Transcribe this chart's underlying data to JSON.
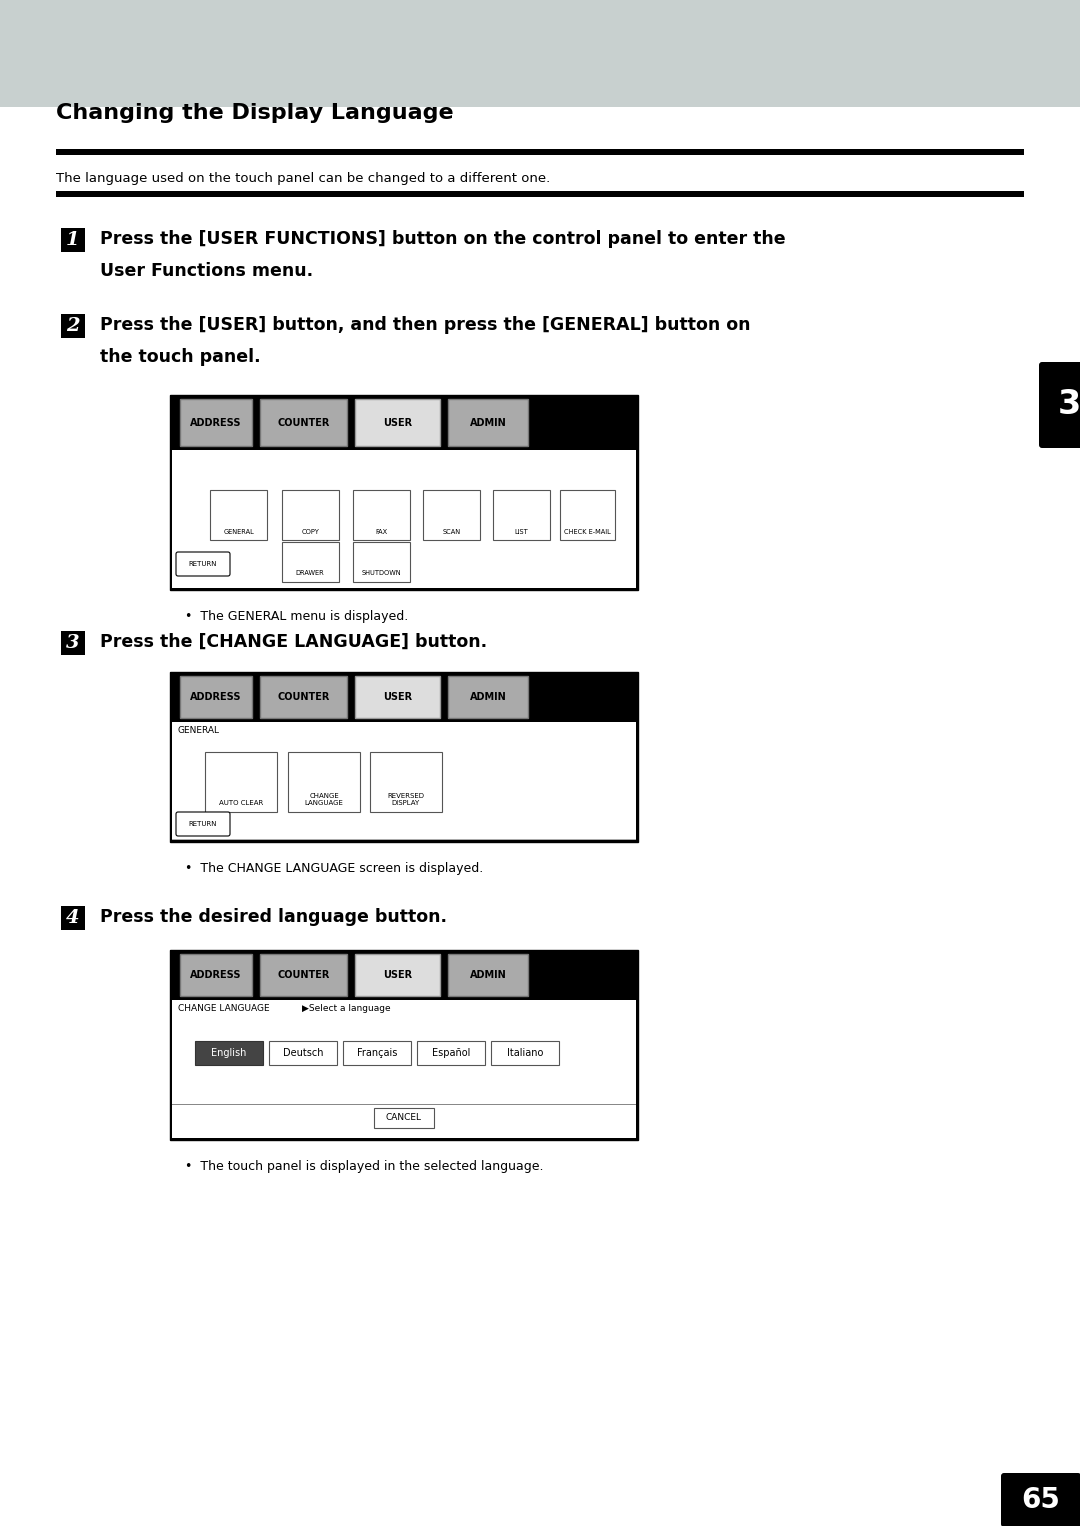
{
  "title": "Changing the Display Language",
  "subtitle": "The language used on the touch panel can be changed to a different one.",
  "header_bg_color": "#c8d0cf",
  "page_bg": "#ffffff",
  "step1_line1": "Press the [USER FUNCTIONS] button on the control panel to enter the",
  "step1_line2": "User Functions menu.",
  "step2_line1": "Press the [USER] button, and then press the [GENERAL] button on",
  "step2_line2": "the touch panel.",
  "step3_text": "Press the [CHANGE LANGUAGE] button.",
  "step4_text": "Press the desired language button.",
  "note1": "The GENERAL menu is displayed.",
  "note2": "The CHANGE LANGUAGE screen is displayed.",
  "note3": "The touch panel is displayed in the selected language.",
  "side_tab_text": "3",
  "page_number": "65",
  "tab_labels": [
    "ADDRESS",
    "COUNTER",
    "USER",
    "ADMIN"
  ],
  "icons1": [
    "GENERAL",
    "COPY",
    "FAX",
    "SCAN",
    "LIST",
    "CHECK E-MAIL"
  ],
  "icons2": [
    "DRAWER",
    "SHUTDOWN"
  ],
  "icons3_labels": [
    "AUTO CLEAR",
    "CHANGE\nLANGUAGE",
    "REVERSED\nDISPLAY"
  ],
  "lang_labels": [
    "English",
    "Deutsch",
    "Français",
    "Español",
    "Italiano"
  ]
}
